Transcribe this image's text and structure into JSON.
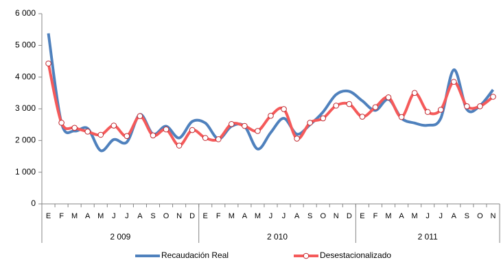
{
  "chart_data": {
    "type": "line",
    "categories": [
      "E",
      "F",
      "M",
      "A",
      "M",
      "J",
      "J",
      "A",
      "S",
      "O",
      "N",
      "D",
      "E",
      "F",
      "M",
      "A",
      "M",
      "J",
      "J",
      "A",
      "S",
      "O",
      "N",
      "D",
      "E",
      "F",
      "M",
      "A",
      "M",
      "J",
      "J",
      "A",
      "S",
      "O",
      "N"
    ],
    "x_groups": [
      {
        "label": "2 009",
        "months": 12
      },
      {
        "label": "2 010",
        "months": 12
      },
      {
        "label": "2 011",
        "months": 11
      }
    ],
    "series": [
      {
        "name": "Recaudación Real",
        "color": "#4f81bd",
        "markers": false,
        "values": [
          5380,
          2550,
          2300,
          2380,
          1680,
          2030,
          1950,
          2820,
          2200,
          2450,
          2080,
          2600,
          2550,
          2050,
          2450,
          2450,
          1730,
          2250,
          2700,
          2200,
          2500,
          2900,
          3450,
          3550,
          3250,
          2950,
          3300,
          2700,
          2550,
          2480,
          2700,
          4230,
          2980,
          3100,
          3600
        ]
      },
      {
        "name": "Desestacionalizado",
        "color": "#f55a5a",
        "markers": true,
        "values": [
          4430,
          2560,
          2400,
          2280,
          2180,
          2470,
          2140,
          2770,
          2160,
          2350,
          1840,
          2330,
          2080,
          2040,
          2520,
          2460,
          2300,
          2780,
          2990,
          2060,
          2560,
          2700,
          3100,
          3150,
          2750,
          3050,
          3360,
          2740,
          3500,
          2900,
          2970,
          3850,
          3080,
          3080,
          3380
        ]
      }
    ],
    "ylim": [
      0,
      6000
    ],
    "yticks": [
      0,
      {
        "value": 1000,
        "label": "1 000"
      },
      {
        "value": 2000,
        "label": "2 000"
      },
      {
        "value": 3000,
        "label": "3 000"
      },
      {
        "value": 4000,
        "label": "4 000"
      },
      {
        "value": 5000,
        "label": "5 000"
      },
      {
        "value": 6000,
        "label": "6 000"
      }
    ],
    "grid": false,
    "legend": "bottom"
  }
}
